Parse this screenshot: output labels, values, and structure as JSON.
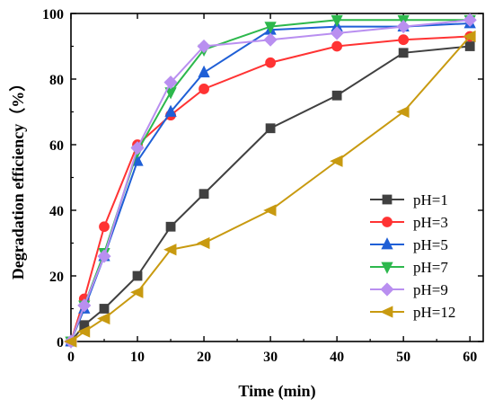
{
  "chart_data": {
    "type": "line",
    "title": "",
    "xlabel": "Time (min)",
    "ylabel": "Degradation efficiency（%）",
    "xlim": [
      0,
      62
    ],
    "ylim": [
      0,
      100
    ],
    "xticks": [
      0,
      10,
      20,
      30,
      40,
      50,
      60
    ],
    "yticks": [
      0,
      20,
      40,
      60,
      80,
      100
    ],
    "grid": false,
    "legend_position": "bottom-right",
    "series": [
      {
        "name": "pH=1",
        "color": "#404040",
        "marker": "square",
        "x": [
          0,
          2,
          5,
          10,
          15,
          20,
          30,
          40,
          50,
          60
        ],
        "y": [
          0,
          5,
          10,
          20,
          35,
          45,
          65,
          75,
          88,
          90
        ]
      },
      {
        "name": "pH=3",
        "color": "#ff3333",
        "marker": "circle",
        "x": [
          0,
          2,
          5,
          10,
          15,
          20,
          30,
          40,
          50,
          60
        ],
        "y": [
          0,
          13,
          35,
          60,
          69,
          77,
          85,
          90,
          92,
          93
        ]
      },
      {
        "name": "pH=5",
        "color": "#1f5fd6",
        "marker": "triangle-up",
        "x": [
          0,
          2,
          5,
          10,
          15,
          20,
          30,
          40,
          50,
          60
        ],
        "y": [
          0,
          10,
          26,
          55,
          70,
          82,
          95,
          96,
          96,
          97
        ]
      },
      {
        "name": "pH=7",
        "color": "#2db84d",
        "marker": "triangle-down",
        "x": [
          0,
          2,
          5,
          10,
          15,
          20,
          30,
          40,
          50,
          60
        ],
        "y": [
          0,
          11,
          27,
          58,
          76,
          89,
          96,
          98,
          98,
          98
        ]
      },
      {
        "name": "pH=9",
        "color": "#b98ff0",
        "marker": "diamond",
        "x": [
          0,
          2,
          5,
          10,
          15,
          20,
          30,
          40,
          50,
          60
        ],
        "y": [
          0,
          11,
          26,
          59,
          79,
          90,
          92,
          94,
          96,
          98
        ]
      },
      {
        "name": "pH=12",
        "color": "#c89a10",
        "marker": "triangle-left",
        "x": [
          0,
          2,
          5,
          10,
          15,
          20,
          30,
          40,
          50,
          60
        ],
        "y": [
          0,
          3,
          7,
          15,
          28,
          30,
          40,
          55,
          70,
          93
        ]
      }
    ]
  }
}
